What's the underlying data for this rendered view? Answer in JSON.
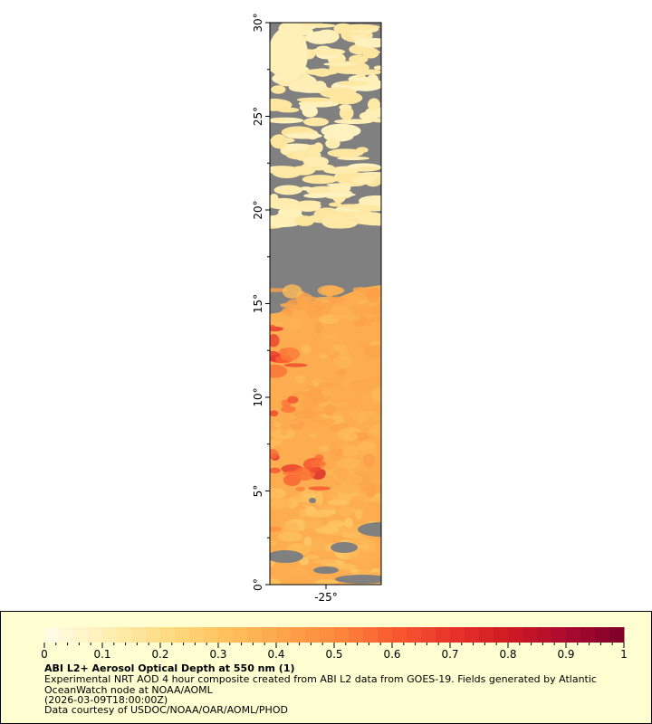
{
  "map": {
    "y_ticks": [
      "0°",
      "5°",
      "10°",
      "15°",
      "20°",
      "25°",
      "30°"
    ],
    "x_ticks": [
      "-25°"
    ],
    "land_or_missing_color": "#808080"
  },
  "legend": {
    "colorbar_ticks": [
      "0",
      "0.1",
      "0.2",
      "0.3",
      "0.4",
      "0.5",
      "0.6",
      "0.7",
      "0.8",
      "0.9",
      "1"
    ],
    "colorbar_range": [
      0,
      1
    ],
    "colormap": [
      "#fffce8",
      "#fff0b8",
      "#fedd88",
      "#fec561",
      "#fda74c",
      "#fc8a3d",
      "#f95b30",
      "#e8342a",
      "#cf1a22",
      "#ab0a2e",
      "#7d0028"
    ],
    "title": "ABI L2+ Aerosol Optical Depth at 550 nm (1)",
    "subtitle": "Experimental NRT AOD 4 hour composite created from ABI L2 data from GOES-19. Fields generated by Atlantic OceanWatch node at NOAA/AOML",
    "time": "(2026-03-09T18:00:00Z)",
    "credit": "Data courtesy of USDOC/NOAA/OAR/AOML/PHOD"
  }
}
